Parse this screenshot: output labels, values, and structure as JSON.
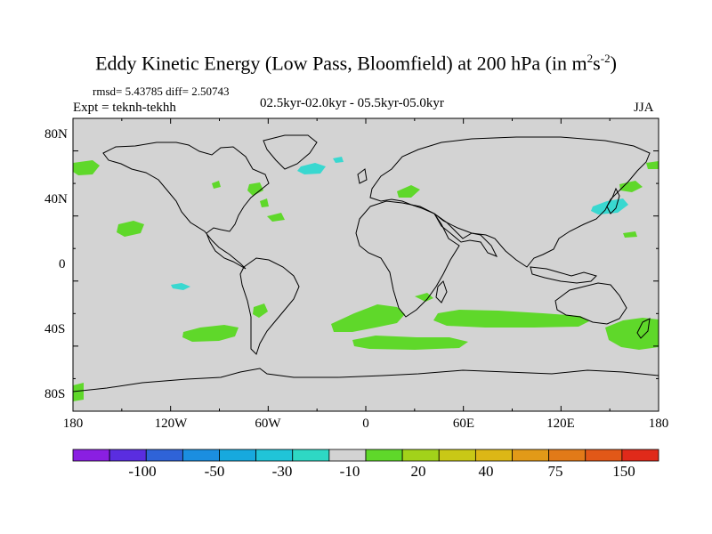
{
  "title": {
    "main": "Eddy Kinetic Energy (Low Pass, Bloomfield) at 200 hPa (in m",
    "sup1": "2",
    "mid": "s",
    "sup2": "-2",
    "close": ")"
  },
  "stats": "rmsd= 5.43785 diff= 2.50743",
  "expt": "Expt = teknh-tekhh",
  "period": "02.5kyr-02.0kyr - 05.5kyr-05.0kyr",
  "season": "JJA",
  "map": {
    "lat_labels": [
      "80N",
      "40N",
      "0",
      "40S",
      "80S"
    ],
    "lon_labels": [
      "180",
      "120W",
      "60W",
      "0",
      "60E",
      "120E",
      "180"
    ],
    "background_color": "#d3d3d3",
    "positive_color": "#5fd82a",
    "negative_color": "#39d8d0",
    "coastline_color": "#000000"
  },
  "colorbar": {
    "colors": [
      "#8a1fe2",
      "#5a2de0",
      "#2f63d8",
      "#1b8ee0",
      "#17a9de",
      "#20c4d8",
      "#2ed8c4",
      "#d3d3d3",
      "#5fd82a",
      "#a2d21a",
      "#c9c816",
      "#dcb716",
      "#e29a18",
      "#e27a18",
      "#e25818",
      "#e02a1a"
    ],
    "labels": [
      "-100",
      "-50",
      "-30",
      "-10",
      "20",
      "40",
      "75",
      "150"
    ]
  }
}
